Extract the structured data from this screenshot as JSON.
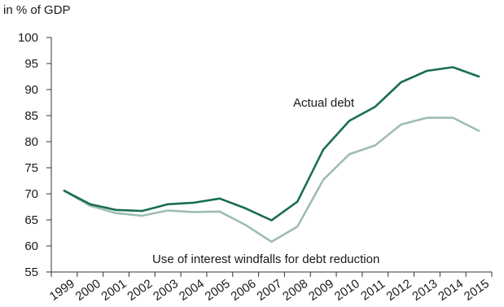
{
  "chart_data": {
    "type": "line",
    "ylabel": "in % of GDP",
    "ylim": [
      55,
      100
    ],
    "yticks": [
      55,
      60,
      65,
      70,
      75,
      80,
      85,
      90,
      95,
      100
    ],
    "x": [
      "1999",
      "2000",
      "2001",
      "2002",
      "2003",
      "2004",
      "2005",
      "2006",
      "2007",
      "2008",
      "2009",
      "2010",
      "2011",
      "2012",
      "2013",
      "2014",
      "2015"
    ],
    "grid": false,
    "series": [
      {
        "name": "Actual debt",
        "color": "#1a6e52",
        "values": [
          70.6,
          68.0,
          66.9,
          66.7,
          68.0,
          68.3,
          69.1,
          67.2,
          64.9,
          68.5,
          78.5,
          84.0,
          86.7,
          91.4,
          93.6,
          94.3,
          92.5
        ]
      },
      {
        "name": "Use of interest windfalls for debt reduction",
        "color": "#9fbdb0",
        "values": [
          70.6,
          67.7,
          66.3,
          65.8,
          66.8,
          66.5,
          66.6,
          64.0,
          60.8,
          63.7,
          72.7,
          77.6,
          79.3,
          83.3,
          84.6,
          84.6,
          82.1
        ]
      }
    ],
    "annotations": [
      {
        "text": "Actual debt",
        "series": 0
      },
      {
        "text": "Use of interest windfalls for debt reduction",
        "series": 1
      }
    ]
  }
}
